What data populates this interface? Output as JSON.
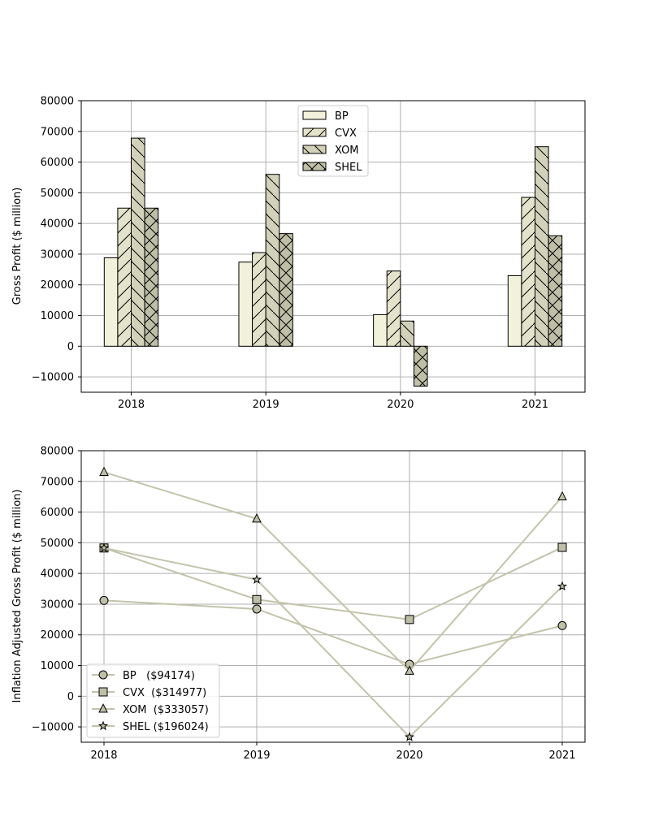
{
  "chart_data": [
    {
      "type": "bar",
      "categories": [
        "2018",
        "2019",
        "2020",
        "2021"
      ],
      "series": [
        {
          "name": "BP",
          "values": [
            28800,
            27400,
            10300,
            23000
          ],
          "color": "#f2f2dc",
          "hatch": "none"
        },
        {
          "name": "CVX",
          "values": [
            45000,
            30500,
            24500,
            48500
          ],
          "color": "#e3e3cb",
          "hatch": "slash"
        },
        {
          "name": "XOM",
          "values": [
            67800,
            56000,
            8200,
            65000
          ],
          "color": "#d2d2ba",
          "hatch": "backslash"
        },
        {
          "name": "SHEL",
          "values": [
            45000,
            36700,
            -13000,
            36000
          ],
          "color": "#bfbfa7",
          "hatch": "cross"
        }
      ],
      "xlabel": "",
      "ylabel": "Gross Profit ($ million)",
      "ylim": [
        -15000,
        80000
      ],
      "yticks": [
        -10000,
        0,
        10000,
        20000,
        30000,
        40000,
        50000,
        60000,
        70000,
        80000
      ],
      "ytick_labels": [
        "−10000",
        "0",
        "10000",
        "20000",
        "30000",
        "40000",
        "50000",
        "60000",
        "70000",
        "80000"
      ],
      "grid": true,
      "legend_position": "top-center"
    },
    {
      "type": "line",
      "x": [
        "2018",
        "2019",
        "2020",
        "2021"
      ],
      "series": [
        {
          "name": "BP",
          "legend_label": "BP   ($94174)",
          "values": [
            31200,
            28400,
            10400,
            23000
          ],
          "marker": "circle"
        },
        {
          "name": "CVX",
          "legend_label": "CVX  ($314977)",
          "values": [
            48300,
            31500,
            25000,
            48500
          ],
          "marker": "square"
        },
        {
          "name": "XOM",
          "legend_label": "XOM  ($333057)",
          "values": [
            73000,
            57800,
            8200,
            65000
          ],
          "marker": "triangle"
        },
        {
          "name": "SHEL",
          "legend_label": "SHEL ($196024)",
          "values": [
            48300,
            38000,
            -13300,
            35800
          ],
          "marker": "star"
        }
      ],
      "line_color": "#c3c3ab",
      "marker_color": "#bfbfa7",
      "xlabel": "",
      "ylabel": "Inflation Adjusted Gross Profit ($ million)",
      "ylim": [
        -15000,
        80000
      ],
      "yticks": [
        -10000,
        0,
        10000,
        20000,
        30000,
        40000,
        50000,
        60000,
        70000,
        80000
      ],
      "ytick_labels": [
        "−10000",
        "0",
        "10000",
        "20000",
        "30000",
        "40000",
        "50000",
        "60000",
        "70000",
        "80000"
      ],
      "grid": true,
      "legend_position": "bottom-left"
    }
  ]
}
